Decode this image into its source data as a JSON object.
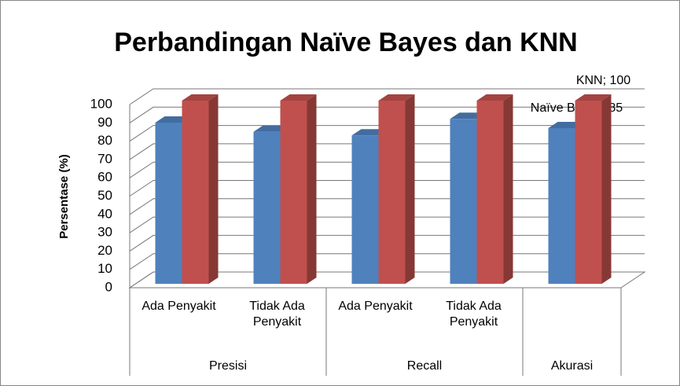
{
  "chart_data": {
    "type": "bar3d",
    "title": "Perbandingan Naïve Bayes dan KNN",
    "ylabel": "Persentase (%)",
    "categories": [
      "Ada Penyakit",
      "Tidak Ada Penyakit",
      "Ada Penyakit",
      "Tidak Ada Penyakit",
      null
    ],
    "category_groups": [
      "Presisi",
      "Presisi",
      "Recall",
      "Recall",
      "Akurasi"
    ],
    "series": [
      {
        "name": "Naïve Bayes",
        "color": "#4f81bd",
        "values": [
          88,
          83,
          81,
          90,
          85
        ],
        "value_labels": [
          null,
          null,
          null,
          null,
          "Naïve Bayes; 85"
        ]
      },
      {
        "name": "KNN",
        "color": "#c0504d",
        "values": [
          100,
          100,
          100,
          100,
          100
        ],
        "value_labels": [
          null,
          null,
          null,
          null,
          "KNN; 100"
        ]
      }
    ],
    "ylim": [
      0,
      100
    ],
    "yticks": [
      0,
      10,
      20,
      30,
      40,
      50,
      60,
      70,
      80,
      90,
      100
    ],
    "grid": true
  }
}
